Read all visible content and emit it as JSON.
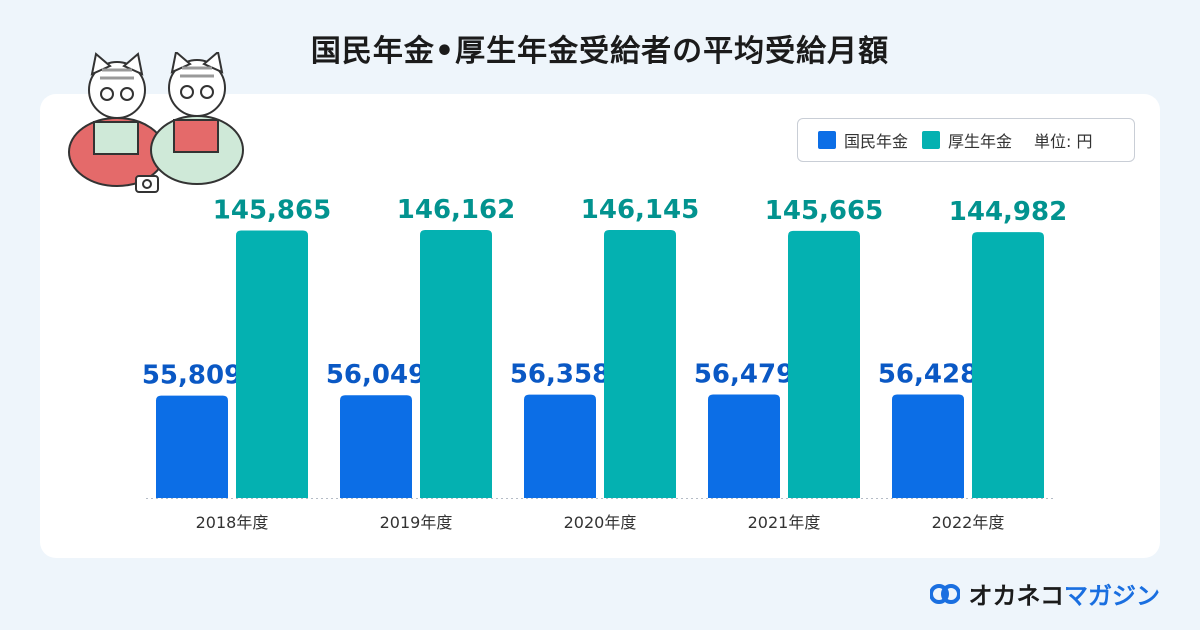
{
  "title": "国民年金•厚生年金受給者の平均受給月額",
  "legend": {
    "items": [
      {
        "label": "国民年金",
        "color": "#0c6ee6"
      },
      {
        "label": "厚生年金",
        "color": "#04b1b1"
      }
    ],
    "unit": "単位: 円"
  },
  "brand": {
    "part1": "オカネコ",
    "part2": "マガジン"
  },
  "colors": {
    "blue": "#0c6ee6",
    "teal": "#04b1b1",
    "blue_label": "#0a58c4",
    "teal_label": "#02938f"
  },
  "chart_data": {
    "type": "bar",
    "categories": [
      "2018年度",
      "2019年度",
      "2020年度",
      "2021年度",
      "2022年度"
    ],
    "series": [
      {
        "name": "国民年金",
        "values": [
          55809,
          56049,
          56358,
          56479,
          56428
        ]
      },
      {
        "name": "厚生年金",
        "values": [
          145865,
          146162,
          146145,
          145665,
          144982
        ]
      }
    ],
    "value_labels": [
      [
        "55,809",
        "56,049",
        "56,358",
        "56,479",
        "56,428"
      ],
      [
        "145,865",
        "146,162",
        "146,145",
        "145,665",
        "144,982"
      ]
    ],
    "ylim": [
      0,
      146162
    ],
    "grid": false,
    "legend_position": "top-right"
  }
}
